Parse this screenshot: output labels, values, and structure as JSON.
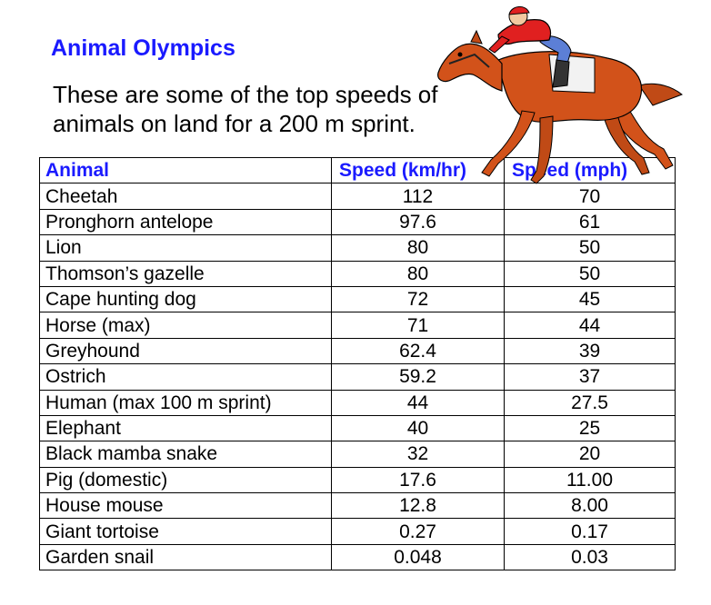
{
  "title": "Animal Olympics",
  "intro": "These are some of the top speeds of animals on land for a 200 m sprint.",
  "table": {
    "headers": [
      "Animal",
      "Speed (km/hr)",
      "Speed (mph)"
    ],
    "rows": [
      [
        "Cheetah",
        "112",
        "70"
      ],
      [
        "Pronghorn antelope",
        "97.6",
        "61"
      ],
      [
        "Lion",
        "80",
        "50"
      ],
      [
        "Thomson’s gazelle",
        "80",
        "50"
      ],
      [
        "Cape hunting dog",
        "72",
        "45"
      ],
      [
        "Horse (max)",
        "71",
        "44"
      ],
      [
        "Greyhound",
        "62.4",
        "39"
      ],
      [
        "Ostrich",
        "59.2",
        "37"
      ],
      [
        "Human (max 100 m sprint)",
        "44",
        "27.5"
      ],
      [
        "Elephant",
        "40",
        "25"
      ],
      [
        "Black mamba snake",
        "32",
        "20"
      ],
      [
        "Pig (domestic)",
        "17.6",
        "11.00"
      ],
      [
        "House mouse",
        "12.8",
        "8.00"
      ],
      [
        "Giant tortoise",
        "0.27",
        "0.17"
      ],
      [
        "Garden snail",
        "0.048",
        "0.03"
      ]
    ]
  },
  "colors": {
    "accent": "#1a1aff",
    "horse": "#d2521a",
    "jockey_shirt": "#e02020",
    "jockey_pants": "#5c7fd6"
  },
  "icons": {
    "illustration": "racehorse-with-jockey"
  }
}
